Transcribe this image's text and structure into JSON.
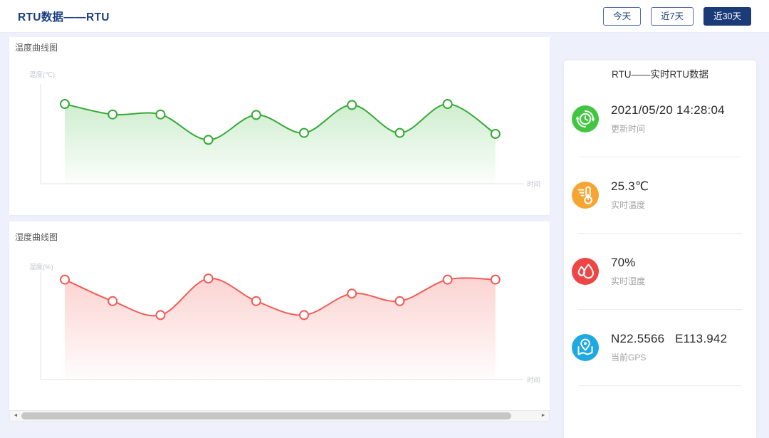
{
  "header": {
    "title": "RTU数据——RTU",
    "buttons": [
      {
        "id": "today",
        "label": "今天",
        "active": false
      },
      {
        "id": "7days",
        "label": "近7天",
        "active": false
      },
      {
        "id": "30days",
        "label": "近30天",
        "active": true
      }
    ]
  },
  "chart_data": [
    {
      "type": "area",
      "title": "温度曲线图",
      "ylabel": "温度(℃)",
      "xlabel": "时间",
      "line_color": "#35a935",
      "fill_rgb": "96,197,96",
      "marker": "white-circle-green-ring",
      "axis_tick_labels": "none",
      "points_norm": [
        0.8,
        0.695,
        0.695,
        0.44,
        0.69,
        0.51,
        0.79,
        0.51,
        0.8,
        0.5
      ]
    },
    {
      "type": "area",
      "title": "湿度曲线图",
      "ylabel": "湿度(%)",
      "xlabel": "时间",
      "line_color": "#f15b55",
      "fill_rgb": "243,112,105",
      "marker": "white-circle-red-ring",
      "axis_tick_labels": "none",
      "points_norm": [
        0.93,
        0.73,
        0.6,
        0.94,
        0.73,
        0.6,
        0.8,
        0.73,
        0.93,
        0.93
      ]
    }
  ],
  "sidebar": {
    "title": "RTU——实时RTU数据",
    "items": [
      {
        "id": "update-time",
        "icon": "refresh-clock",
        "color": "#42c642",
        "value": "2021/05/20 14:28:04",
        "label": "更新时间"
      },
      {
        "id": "realtime-temperature",
        "icon": "thermometer",
        "color": "#f6a532",
        "value": "25.3℃",
        "label": "实时温度"
      },
      {
        "id": "realtime-humidity",
        "icon": "water-drop",
        "color": "#ee4545",
        "value": "70%",
        "label": "实时湿度"
      },
      {
        "id": "current-gps",
        "icon": "map-pin",
        "color": "#1fa9e1",
        "value": "N22.5566   E113.942",
        "label": "当前GPS"
      }
    ]
  },
  "scrollbar": {
    "left_arrow": "◄",
    "right_arrow": "►"
  }
}
